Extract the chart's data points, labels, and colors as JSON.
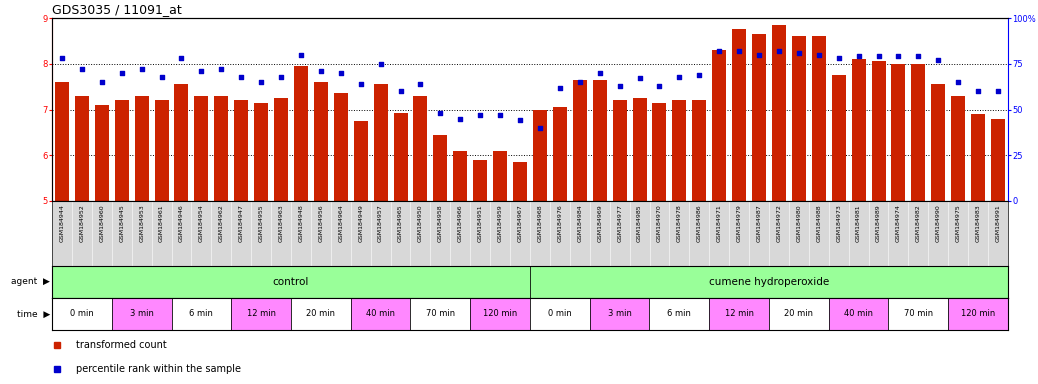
{
  "title": "GDS3035 / 11091_at",
  "samples": [
    "GSM184944",
    "GSM184952",
    "GSM184960",
    "GSM184945",
    "GSM184953",
    "GSM184961",
    "GSM184946",
    "GSM184954",
    "GSM184962",
    "GSM184947",
    "GSM184955",
    "GSM184963",
    "GSM184948",
    "GSM184956",
    "GSM184964",
    "GSM184949",
    "GSM184957",
    "GSM184965",
    "GSM184950",
    "GSM184958",
    "GSM184966",
    "GSM184951",
    "GSM184959",
    "GSM184967",
    "GSM184968",
    "GSM184976",
    "GSM184984",
    "GSM184969",
    "GSM184977",
    "GSM184985",
    "GSM184970",
    "GSM184978",
    "GSM184986",
    "GSM184971",
    "GSM184979",
    "GSM184987",
    "GSM184972",
    "GSM184980",
    "GSM184988",
    "GSM184973",
    "GSM184981",
    "GSM184989",
    "GSM184974",
    "GSM184982",
    "GSM184990",
    "GSM184975",
    "GSM184983",
    "GSM184991"
  ],
  "bar_values": [
    7.6,
    7.3,
    7.1,
    7.2,
    7.3,
    7.2,
    7.55,
    7.3,
    7.3,
    7.2,
    7.15,
    7.25,
    7.95,
    7.6,
    7.35,
    6.75,
    7.55,
    6.93,
    7.3,
    6.45,
    6.1,
    5.9,
    6.1,
    5.85,
    7.0,
    7.05,
    7.65,
    7.65,
    7.2,
    7.25,
    7.15,
    7.2,
    7.2,
    8.3,
    8.75,
    8.65,
    8.85,
    8.6,
    8.6,
    7.75,
    8.1,
    8.05,
    8.0,
    8.0,
    7.55,
    7.3,
    6.9,
    6.8
  ],
  "dot_values": [
    78,
    72,
    65,
    70,
    72,
    68,
    78,
    71,
    72,
    68,
    65,
    68,
    80,
    71,
    70,
    64,
    75,
    60,
    64,
    48,
    45,
    47,
    47,
    44,
    40,
    62,
    65,
    70,
    63,
    67,
    63,
    68,
    69,
    82,
    82,
    80,
    82,
    81,
    80,
    78,
    79,
    79,
    79,
    79,
    77,
    65,
    60,
    60
  ],
  "ylim_left": [
    5,
    9
  ],
  "ylim_right": [
    0,
    100
  ],
  "yticks_left": [
    5,
    6,
    7,
    8,
    9
  ],
  "yticks_right": [
    0,
    25,
    50,
    75,
    100
  ],
  "bar_color": "#cc2200",
  "dot_color": "#0000cc",
  "bg_color": "#ffffff",
  "sample_bg": "#d8d8d8",
  "agent_groups": [
    {
      "label": "control",
      "start": 0,
      "end": 24,
      "color": "#99ff99"
    },
    {
      "label": "cumene hydroperoxide",
      "start": 24,
      "end": 48,
      "color": "#99ff99"
    }
  ],
  "time_groups": [
    {
      "label": "0 min",
      "start": 0,
      "end": 3,
      "color": "#ffffff"
    },
    {
      "label": "3 min",
      "start": 3,
      "end": 6,
      "color": "#ff88ff"
    },
    {
      "label": "6 min",
      "start": 6,
      "end": 9,
      "color": "#ffffff"
    },
    {
      "label": "12 min",
      "start": 9,
      "end": 12,
      "color": "#ff88ff"
    },
    {
      "label": "20 min",
      "start": 12,
      "end": 15,
      "color": "#ffffff"
    },
    {
      "label": "40 min",
      "start": 15,
      "end": 18,
      "color": "#ff88ff"
    },
    {
      "label": "70 min",
      "start": 18,
      "end": 21,
      "color": "#ffffff"
    },
    {
      "label": "120 min",
      "start": 21,
      "end": 24,
      "color": "#ff88ff"
    },
    {
      "label": "0 min",
      "start": 24,
      "end": 27,
      "color": "#ffffff"
    },
    {
      "label": "3 min",
      "start": 27,
      "end": 30,
      "color": "#ff88ff"
    },
    {
      "label": "6 min",
      "start": 30,
      "end": 33,
      "color": "#ffffff"
    },
    {
      "label": "12 min",
      "start": 33,
      "end": 36,
      "color": "#ff88ff"
    },
    {
      "label": "20 min",
      "start": 36,
      "end": 39,
      "color": "#ffffff"
    },
    {
      "label": "40 min",
      "start": 39,
      "end": 42,
      "color": "#ff88ff"
    },
    {
      "label": "70 min",
      "start": 42,
      "end": 45,
      "color": "#ffffff"
    },
    {
      "label": "120 min",
      "start": 45,
      "end": 48,
      "color": "#ff88ff"
    }
  ],
  "legend_items": [
    {
      "label": "transformed count",
      "color": "#cc2200"
    },
    {
      "label": "percentile rank within the sample",
      "color": "#0000cc"
    }
  ],
  "title_fontsize": 9,
  "tick_fontsize": 6,
  "sample_fontsize": 4.5,
  "annot_fontsize": 7.5,
  "legend_fontsize": 7
}
